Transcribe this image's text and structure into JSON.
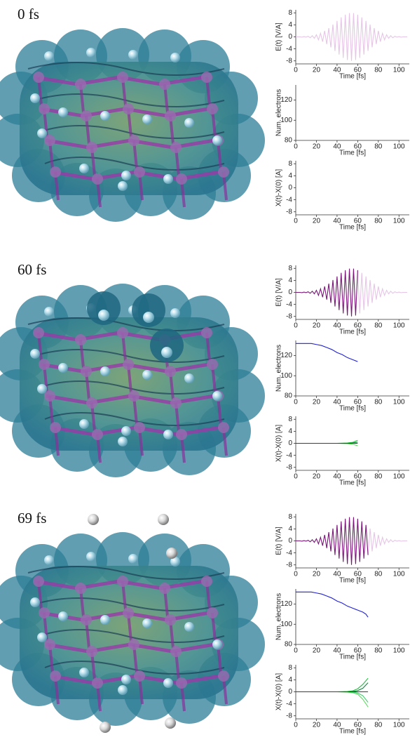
{
  "snapshots": [
    "0 fs",
    "60 fs",
    "69 fs"
  ],
  "chart_data": [
    {
      "type": "line",
      "ylabel": "E(t)  [V/A]",
      "xlabel": "Time [fs]",
      "xlim": [
        0,
        110
      ],
      "xticks": [
        0,
        20,
        40,
        60,
        80,
        100
      ],
      "ylim": [
        -9,
        9
      ],
      "yticks": [
        -8,
        -4,
        0,
        4,
        8
      ],
      "series": [
        {
          "color": "#e6c6e6",
          "x": [
            0,
            2,
            4,
            6,
            8,
            10,
            12,
            14,
            16,
            18,
            20,
            22,
            24,
            26,
            28,
            30,
            32,
            34,
            36,
            38,
            40,
            42,
            44,
            46,
            48,
            50,
            52,
            54,
            56,
            58,
            60,
            62,
            64,
            66,
            68,
            70,
            72,
            74,
            76,
            78,
            80,
            82,
            84,
            86,
            88,
            90,
            92,
            94,
            96,
            98,
            100,
            102,
            104,
            106,
            108
          ],
          "values": [
            0,
            0,
            0,
            -0.1,
            0.1,
            -0.1,
            0.2,
            -0.3,
            0.4,
            -0.5,
            0.7,
            -1.0,
            1.2,
            -1.6,
            2.0,
            -2.4,
            2.9,
            -3.5,
            4.1,
            -4.7,
            5.3,
            -5.9,
            6.5,
            -7.0,
            7.4,
            -7.7,
            7.9,
            -8.0,
            7.9,
            -7.7,
            7.4,
            -7.0,
            6.5,
            -5.9,
            5.3,
            -4.7,
            4.1,
            -3.5,
            2.9,
            -2.4,
            2.0,
            -1.6,
            1.2,
            -1.0,
            0.7,
            -0.5,
            0.4,
            -0.3,
            0.2,
            -0.1,
            0.1,
            -0.1,
            0,
            0,
            0
          ]
        }
      ]
    },
    {
      "type": "line",
      "ylabel": "Num. electrons",
      "xlabel": "Time [fs]",
      "xlim": [
        0,
        110
      ],
      "xticks": [
        0,
        20,
        40,
        60,
        80,
        100
      ],
      "ylim": [
        80,
        135
      ],
      "yticks": [
        80,
        100,
        120
      ],
      "series": []
    },
    {
      "type": "line",
      "ylabel": "X(t)-X(0)  [A]",
      "xlabel": "Time [fs]",
      "xlim": [
        0,
        110
      ],
      "xticks": [
        0,
        20,
        40,
        60,
        80,
        100
      ],
      "ylim": [
        -9,
        9
      ],
      "yticks": [
        -8,
        -4,
        0,
        4,
        8
      ],
      "series": []
    },
    {
      "type": "line",
      "ylabel": "E(t)  [V/A]",
      "xlabel": "Time [fs]",
      "xlim": [
        0,
        110
      ],
      "xticks": [
        0,
        20,
        40,
        60,
        80,
        100
      ],
      "ylim": [
        -9,
        9
      ],
      "yticks": [
        -8,
        -4,
        0,
        4,
        8
      ],
      "series": [
        {
          "color": "#e6c6e6",
          "x": [
            60,
            62,
            64,
            66,
            68,
            70,
            72,
            74,
            76,
            78,
            80,
            82,
            84,
            86,
            88,
            90,
            92,
            94,
            96,
            98,
            100,
            102,
            104,
            106,
            108
          ],
          "values": [
            7.4,
            -7.0,
            6.5,
            -5.9,
            5.3,
            -4.7,
            4.1,
            -3.5,
            2.9,
            -2.4,
            2.0,
            -1.6,
            1.2,
            -1.0,
            0.7,
            -0.5,
            0.4,
            -0.3,
            0.2,
            -0.1,
            0.1,
            -0.1,
            0,
            0,
            0
          ]
        },
        {
          "color": "#7a1878",
          "x": [
            0,
            2,
            4,
            6,
            8,
            10,
            12,
            14,
            16,
            18,
            20,
            22,
            24,
            26,
            28,
            30,
            32,
            34,
            36,
            38,
            40,
            42,
            44,
            46,
            48,
            50,
            52,
            54,
            56,
            58,
            60
          ],
          "values": [
            0,
            0,
            0,
            -0.1,
            0.1,
            -0.1,
            0.2,
            -0.3,
            0.4,
            -0.5,
            0.7,
            -1.0,
            1.2,
            -1.6,
            2.0,
            -2.4,
            2.9,
            -3.5,
            4.1,
            -4.7,
            5.3,
            -5.9,
            6.5,
            -7.0,
            7.4,
            -7.7,
            7.9,
            -8.0,
            7.9,
            -7.7,
            7.4
          ]
        }
      ]
    },
    {
      "type": "line",
      "ylabel": "Num. electrons",
      "xlabel": "Time [fs]",
      "xlim": [
        0,
        110
      ],
      "xticks": [
        0,
        20,
        40,
        60,
        80,
        100
      ],
      "ylim": [
        80,
        135
      ],
      "yticks": [
        80,
        100,
        120
      ],
      "series": [
        {
          "color": "#2222d0",
          "x": [
            0,
            5,
            10,
            15,
            20,
            25,
            30,
            35,
            40,
            45,
            50,
            55,
            60
          ],
          "values": [
            132,
            132,
            132,
            132,
            131,
            130,
            128,
            126,
            123,
            121,
            118,
            116,
            114
          ]
        }
      ]
    },
    {
      "type": "line",
      "ylabel": "X(t)-X(0)  [A]",
      "xlabel": "Time [fs]",
      "xlim": [
        0,
        110
      ],
      "xticks": [
        0,
        20,
        40,
        60,
        80,
        100
      ],
      "ylim": [
        -9,
        9
      ],
      "yticks": [
        -8,
        -4,
        0,
        4,
        8
      ],
      "series": [
        {
          "color": "#22c23f",
          "x": [
            0,
            10,
            20,
            30,
            40,
            50,
            55,
            60
          ],
          "values": [
            0,
            0,
            0,
            0,
            0,
            0.1,
            0.3,
            1.0
          ]
        },
        {
          "color": "#5fdc5f",
          "x": [
            0,
            10,
            20,
            30,
            40,
            50,
            55,
            60
          ],
          "values": [
            0,
            0,
            0,
            0,
            0,
            -0.1,
            -0.3,
            -0.8
          ]
        },
        {
          "color": "#0d8a3a",
          "x": [
            0,
            10,
            20,
            30,
            40,
            50,
            55,
            60
          ],
          "values": [
            0,
            0,
            0,
            0,
            0,
            0,
            0.1,
            0.4
          ]
        },
        {
          "color": "#1a4a5a",
          "x": [
            0,
            10,
            20,
            30,
            40,
            50,
            55,
            60
          ],
          "values": [
            0,
            0,
            0,
            0,
            0,
            0,
            0,
            0
          ]
        }
      ]
    },
    {
      "type": "line",
      "ylabel": "E(t)  [V/A]",
      "xlabel": "Time [fs]",
      "xlim": [
        0,
        110
      ],
      "xticks": [
        0,
        20,
        40,
        60,
        80,
        100
      ],
      "ylim": [
        -9,
        9
      ],
      "yticks": [
        -8,
        -4,
        0,
        4,
        8
      ],
      "series": [
        {
          "color": "#e6c6e6",
          "x": [
            70,
            72,
            74,
            76,
            78,
            80,
            82,
            84,
            86,
            88,
            90,
            92,
            94,
            96,
            98,
            100,
            102,
            104,
            106,
            108
          ],
          "values": [
            -4.7,
            4.1,
            -3.5,
            2.9,
            -2.4,
            2.0,
            -1.6,
            1.2,
            -1.0,
            0.7,
            -0.5,
            0.4,
            -0.3,
            0.2,
            -0.1,
            0.1,
            -0.1,
            0,
            0,
            0
          ]
        },
        {
          "color": "#7a1878",
          "x": [
            0,
            2,
            4,
            6,
            8,
            10,
            12,
            14,
            16,
            18,
            20,
            22,
            24,
            26,
            28,
            30,
            32,
            34,
            36,
            38,
            40,
            42,
            44,
            46,
            48,
            50,
            52,
            54,
            56,
            58,
            60,
            62,
            64,
            66,
            68,
            70
          ],
          "values": [
            0,
            0,
            0,
            -0.1,
            0.1,
            -0.1,
            0.2,
            -0.3,
            0.4,
            -0.5,
            0.7,
            -1.0,
            1.2,
            -1.6,
            2.0,
            -2.4,
            2.9,
            -3.5,
            4.1,
            -4.7,
            5.3,
            -5.9,
            6.5,
            -7.0,
            7.4,
            -7.7,
            7.9,
            -8.0,
            7.9,
            -7.7,
            7.4,
            -7.0,
            6.5,
            -5.9,
            5.3,
            -4.7
          ]
        }
      ]
    },
    {
      "type": "line",
      "ylabel": "Num. electrons",
      "xlabel": "Time [fs]",
      "xlim": [
        0,
        110
      ],
      "xticks": [
        0,
        20,
        40,
        60,
        80,
        100
      ],
      "ylim": [
        80,
        135
      ],
      "yticks": [
        80,
        100,
        120
      ],
      "series": [
        {
          "color": "#2222d0",
          "x": [
            0,
            5,
            10,
            15,
            20,
            25,
            30,
            35,
            40,
            45,
            50,
            55,
            60,
            65,
            68,
            70
          ],
          "values": [
            132,
            132,
            132,
            132,
            131,
            130,
            128,
            126,
            123,
            121,
            118,
            116,
            114,
            112,
            110,
            107
          ]
        }
      ]
    },
    {
      "type": "line",
      "ylabel": "X(t)-X(0)  [A]",
      "xlabel": "Time [fs]",
      "xlim": [
        0,
        110
      ],
      "xticks": [
        0,
        20,
        40,
        60,
        80,
        100
      ],
      "ylim": [
        -9,
        9
      ],
      "yticks": [
        -8,
        -4,
        0,
        4,
        8
      ],
      "series": [
        {
          "color": "#22c23f",
          "x": [
            0,
            10,
            20,
            30,
            40,
            50,
            55,
            60,
            65,
            70
          ],
          "values": [
            0,
            0,
            0,
            0,
            0,
            0.1,
            0.3,
            1.0,
            2.5,
            4.5
          ]
        },
        {
          "color": "#5fdc5f",
          "x": [
            0,
            10,
            20,
            30,
            40,
            50,
            55,
            60,
            65,
            70
          ],
          "values": [
            0,
            0,
            0,
            0,
            0,
            -0.1,
            -0.3,
            -0.8,
            -2.5,
            -5.0
          ]
        },
        {
          "color": "#0d8a3a",
          "x": [
            0,
            10,
            20,
            30,
            40,
            50,
            55,
            60,
            65,
            70
          ],
          "values": [
            0,
            0,
            0,
            0,
            0,
            0,
            0.1,
            0.4,
            1.2,
            3.0
          ]
        },
        {
          "color": "#3fcf6f",
          "x": [
            0,
            10,
            20,
            30,
            40,
            50,
            55,
            60,
            65,
            70
          ],
          "values": [
            0,
            0,
            0,
            0,
            0,
            0,
            -0.1,
            -0.4,
            -1.3,
            -3.5
          ]
        },
        {
          "color": "#1a4a5a",
          "x": [
            0,
            10,
            20,
            30,
            40,
            50,
            55,
            60,
            65,
            70
          ],
          "values": [
            0,
            0,
            0,
            0,
            0,
            0,
            0,
            0,
            0,
            0
          ]
        }
      ]
    }
  ]
}
